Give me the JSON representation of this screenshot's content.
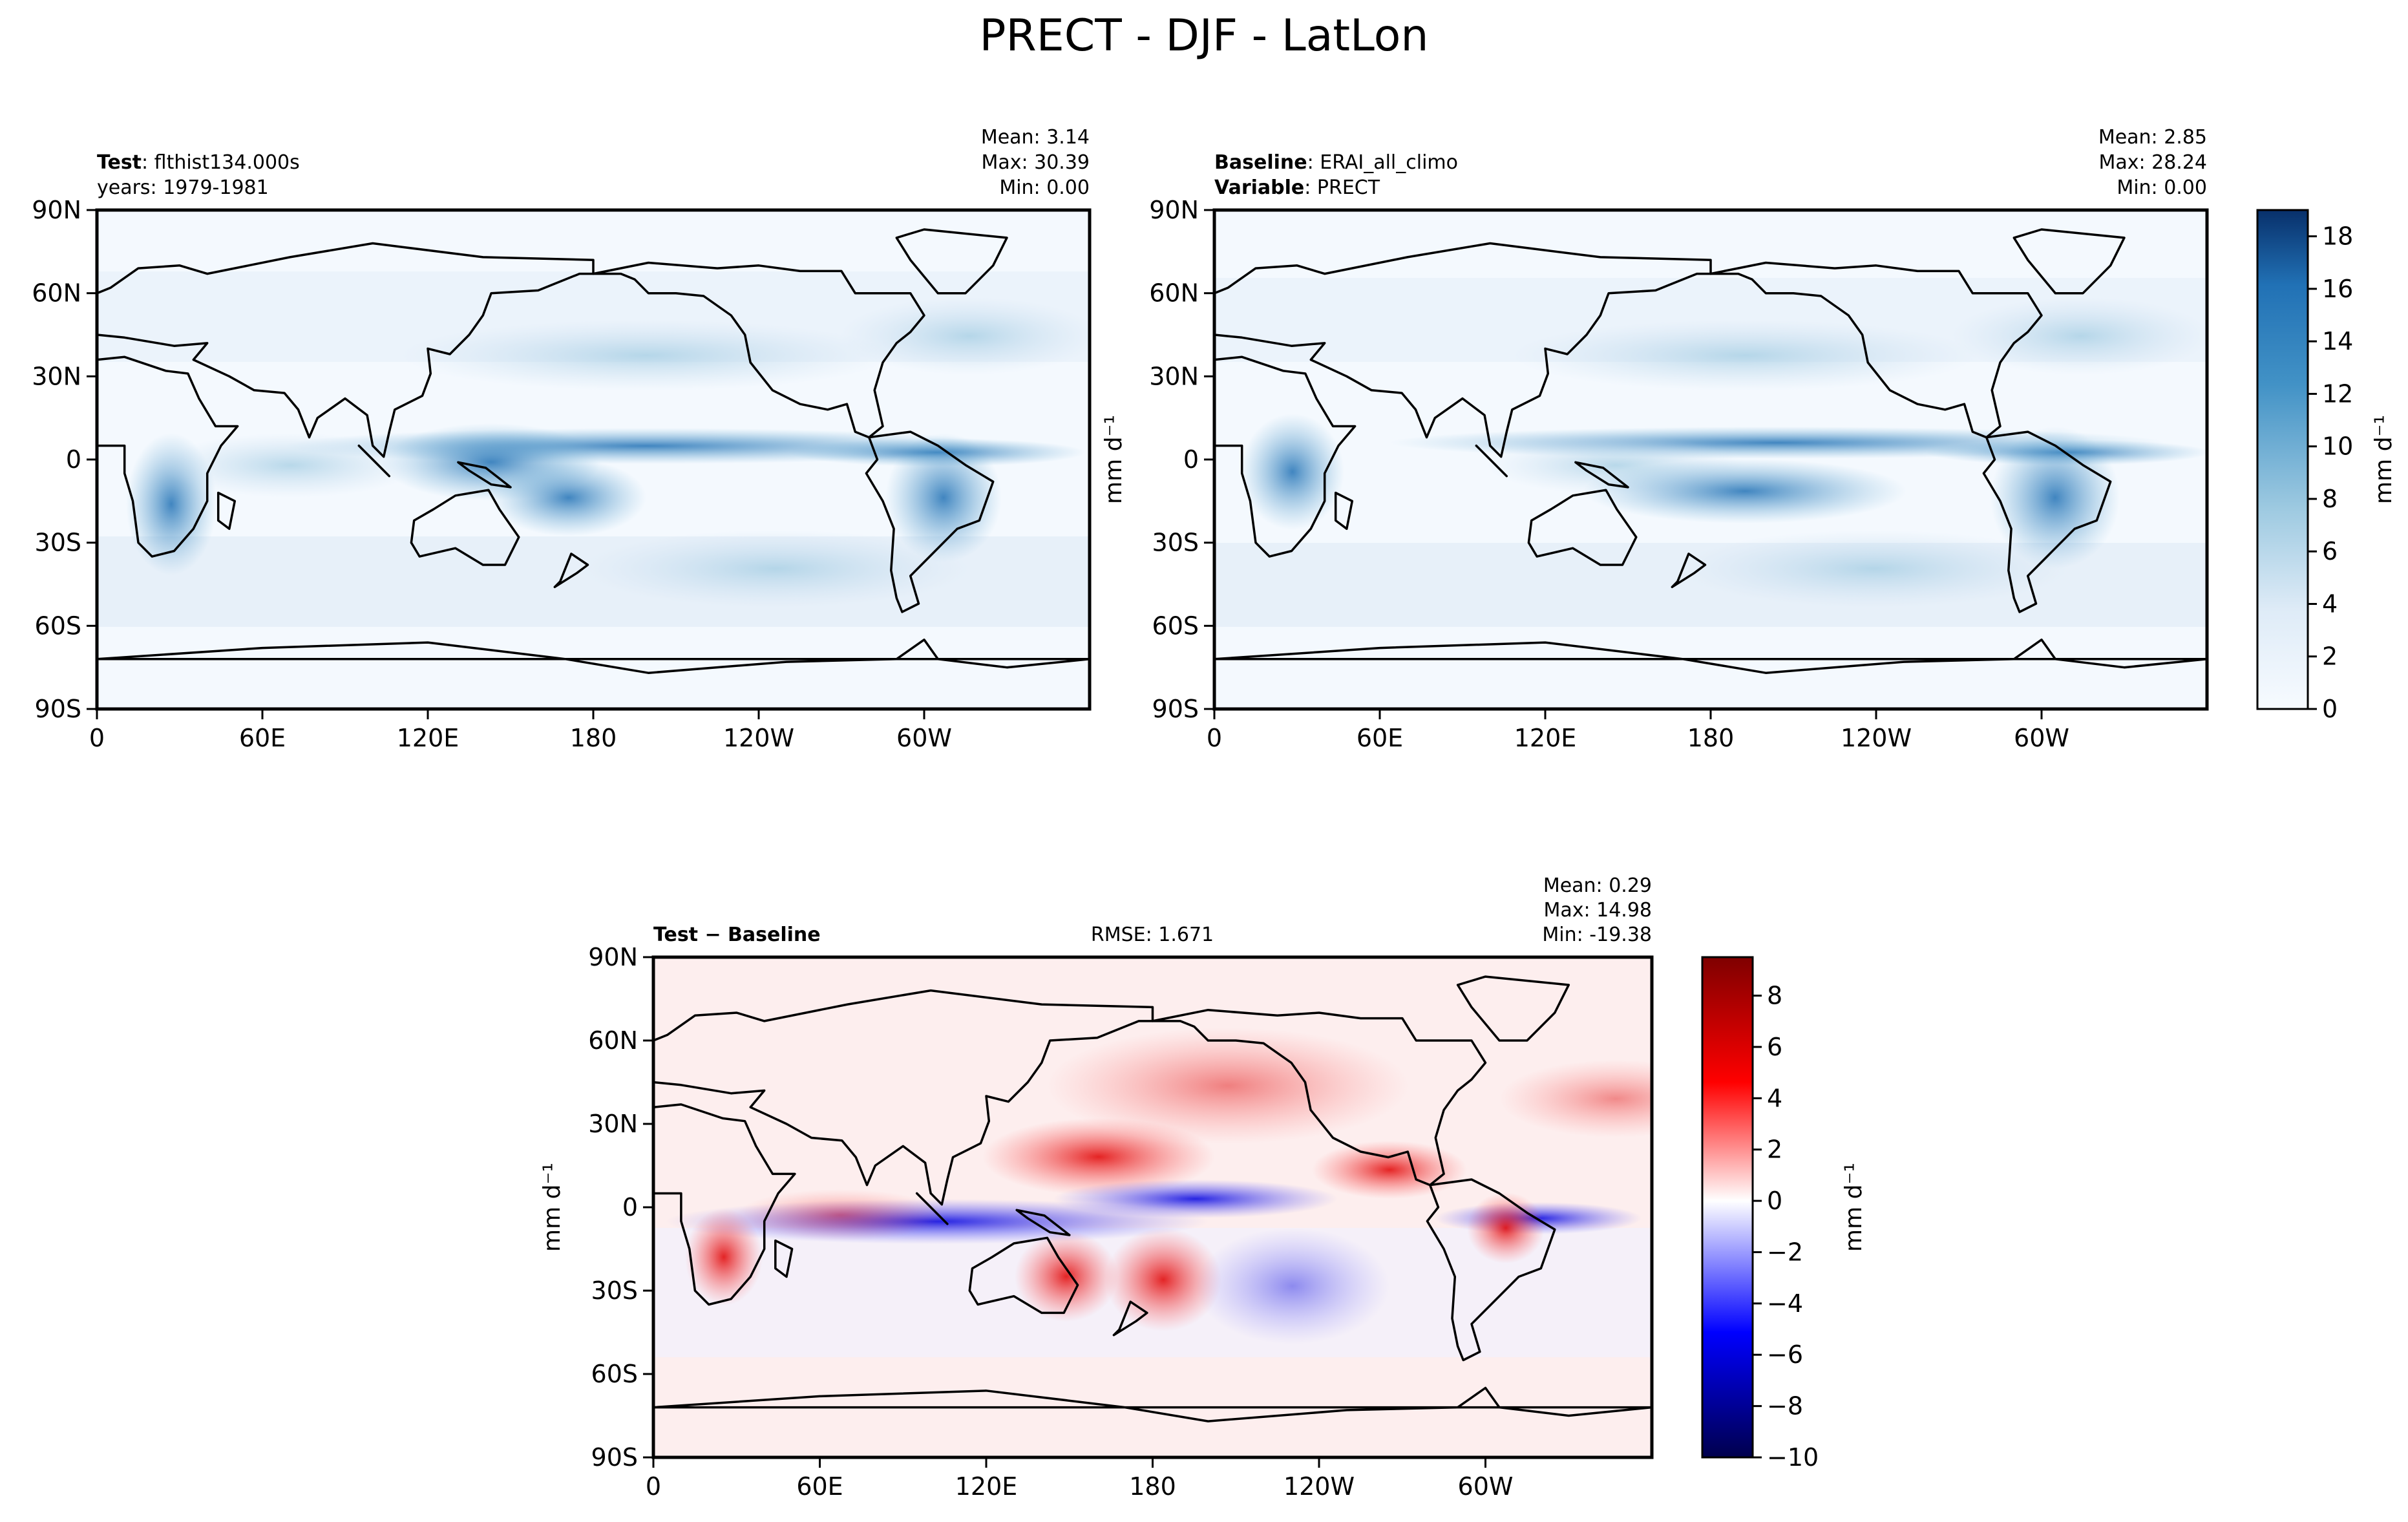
{
  "figure": {
    "title": "PRECT - DJF - LatLon"
  },
  "x_ticks": [
    "0",
    "60E",
    "120E",
    "180",
    "120W",
    "60W"
  ],
  "y_ticks": [
    "90N",
    "60N",
    "30N",
    "0",
    "30S",
    "60S",
    "90S"
  ],
  "panels": {
    "test": {
      "label_bold": "Test",
      "label_rest": ": flthist134.000s",
      "line2": "years: 1979-1981",
      "mean": "Mean:  3.14",
      "max": "Max: 30.39",
      "min": "Min:  0.00"
    },
    "baseline": {
      "label_bold": "Baseline",
      "label_rest": ": ERAI_all_climo",
      "line2_bold": "Variable",
      "line2_rest": ": PRECT",
      "mean": "Mean:  2.85",
      "max": "Max: 28.24",
      "min": "Min:  0.00"
    },
    "diff": {
      "label": "Test − Baseline",
      "rmse": "RMSE: 1.671",
      "mean": "Mean:  0.29",
      "max": "Max: 14.98",
      "min": "Min: -19.38"
    }
  },
  "units": "mm d⁻¹",
  "colorbar_main": {
    "ticks": [
      "0",
      "2",
      "4",
      "6",
      "8",
      "10",
      "12",
      "14",
      "16",
      "18"
    ],
    "range": [
      0,
      19
    ],
    "colors": {
      "low": "#f7fbff",
      "high": "#08306b"
    }
  },
  "colorbar_diff": {
    "ticks": [
      "−10",
      "−8",
      "−6",
      "−4",
      "−2",
      "0",
      "2",
      "4",
      "6",
      "8"
    ],
    "range": [
      -10,
      9.5
    ],
    "colors": {
      "low": "#00004d",
      "mid": "#ffffff",
      "high": "#7f0000"
    }
  },
  "chart_data": [
    {
      "type": "heatmap",
      "title": "PRECT - DJF - LatLon",
      "panel": "Test",
      "xlabel": "",
      "ylabel": "",
      "x_tick_labels": [
        "0",
        "60E",
        "120E",
        "180",
        "120W",
        "60W"
      ],
      "y_tick_labels": [
        "90N",
        "60N",
        "30N",
        "0",
        "30S",
        "60S",
        "90S"
      ],
      "xlim": [
        0,
        360
      ],
      "ylim": [
        -90,
        90
      ],
      "colorbar_label": "mm d⁻¹",
      "stats": {
        "mean": 3.14,
        "max": 30.39,
        "min": 0.0
      }
    },
    {
      "type": "heatmap",
      "panel": "Baseline",
      "xlim": [
        0,
        360
      ],
      "ylim": [
        -90,
        90
      ],
      "colorbar_label": "mm d⁻¹",
      "colorbar_ticks": [
        0,
        2,
        4,
        6,
        8,
        10,
        12,
        14,
        16,
        18
      ],
      "stats": {
        "mean": 2.85,
        "max": 28.24,
        "min": 0.0
      }
    },
    {
      "type": "heatmap",
      "panel": "Test − Baseline",
      "xlim": [
        0,
        360
      ],
      "ylim": [
        -90,
        90
      ],
      "colorbar_label": "mm d⁻¹",
      "colorbar_ticks": [
        -10,
        -8,
        -6,
        -4,
        -2,
        0,
        2,
        4,
        6,
        8
      ],
      "rmse": 1.671,
      "stats": {
        "mean": 0.29,
        "max": 14.98,
        "min": -19.38
      }
    }
  ]
}
